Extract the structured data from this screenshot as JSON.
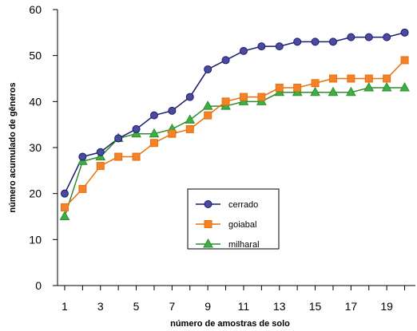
{
  "chart_data": {
    "type": "line",
    "title": "",
    "xlabel": "número de amostras de solo",
    "ylabel": "número acumulado de gêneros",
    "xlim": [
      0.6,
      20.6
    ],
    "ylim": [
      0,
      60
    ],
    "x_ticks": [
      1,
      3,
      5,
      7,
      9,
      11,
      13,
      15,
      17,
      19
    ],
    "y_ticks": [
      0,
      10,
      20,
      30,
      40,
      50,
      60
    ],
    "grid": false,
    "legend_position": "center-right",
    "x": [
      1,
      2,
      3,
      4,
      5,
      6,
      7,
      8,
      9,
      10,
      11,
      12,
      13,
      14,
      15,
      16,
      17,
      18,
      19,
      20
    ],
    "series": [
      {
        "name": "cerrado",
        "marker": "circle",
        "line_color": "#1a1a6e",
        "fill_color": "#4b4b9e",
        "values": [
          20,
          28,
          29,
          32,
          34,
          37,
          38,
          41,
          47,
          49,
          51,
          52,
          52,
          53,
          53,
          53,
          54,
          54,
          54,
          55
        ]
      },
      {
        "name": "goiabal",
        "marker": "square",
        "line_color": "#e8700a",
        "fill_color": "#f4822a",
        "values": [
          17,
          21,
          26,
          28,
          28,
          31,
          33,
          34,
          37,
          40,
          41,
          41,
          43,
          43,
          44,
          45,
          45,
          45,
          45,
          49
        ]
      },
      {
        "name": "milharal",
        "marker": "triangle",
        "line_color": "#2e8b2e",
        "fill_color": "#3cb043",
        "values": [
          15,
          27,
          28,
          32,
          33,
          33,
          34,
          36,
          39,
          39,
          40,
          40,
          42,
          42,
          42,
          42,
          42,
          43,
          43,
          43
        ]
      }
    ]
  }
}
